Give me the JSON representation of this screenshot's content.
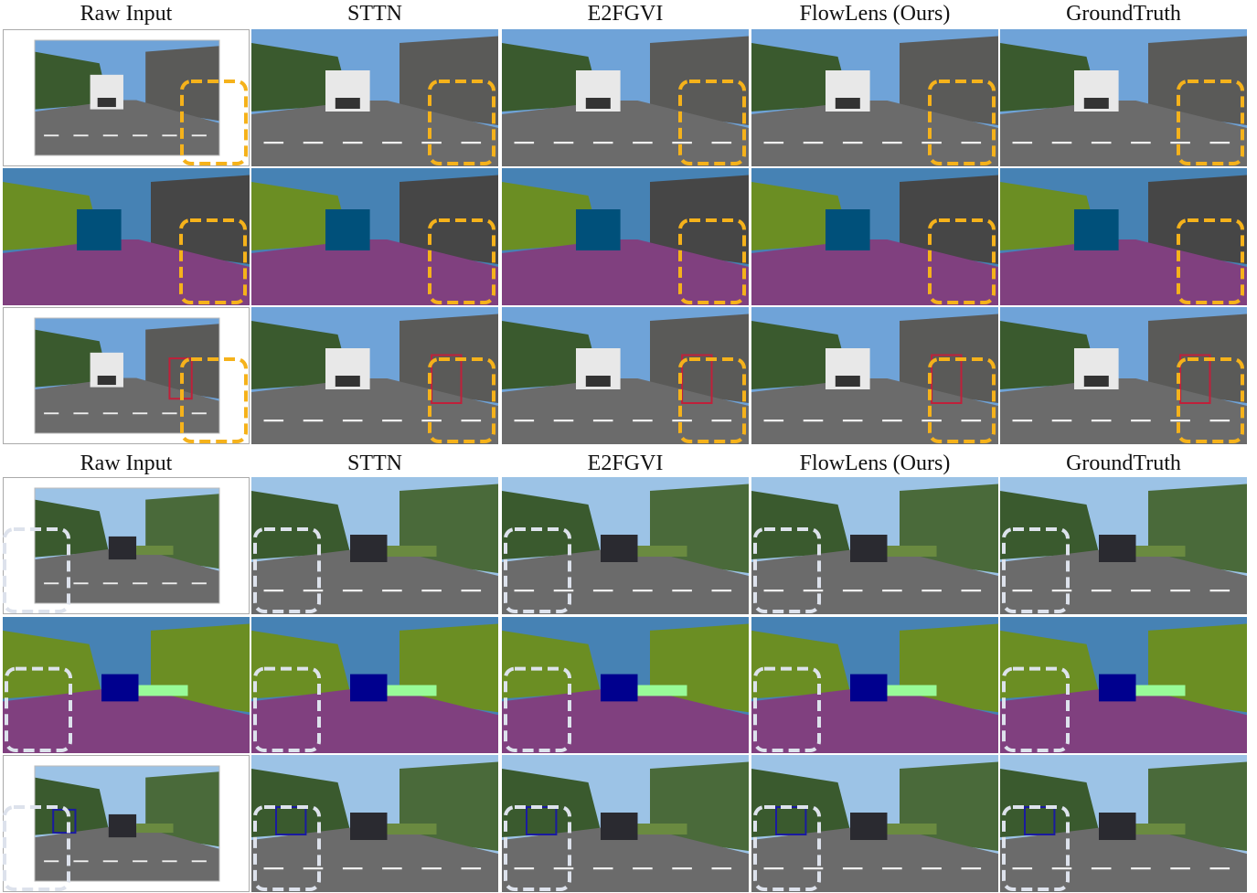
{
  "groups": [
    {
      "headers": [
        "Raw Input",
        "STTN",
        "E2FGVI",
        "FlowLens (Ours)",
        "GroundTruth"
      ]
    },
    {
      "headers": [
        "Raw Input",
        "STTN",
        "E2FGVI",
        "FlowLens (Ours)",
        "GroundTruth"
      ]
    }
  ]
}
